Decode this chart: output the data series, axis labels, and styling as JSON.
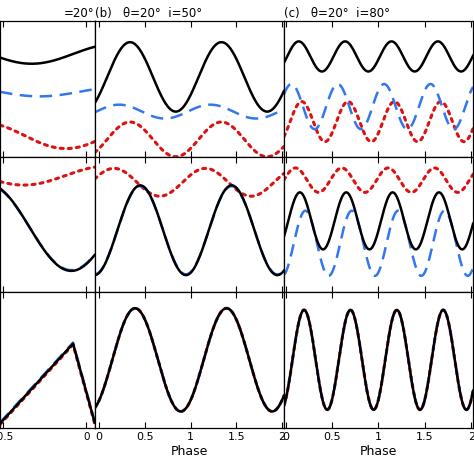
{
  "title_b": "(b)   θ=20°  i=50°",
  "title_c": "(c)   θ=20°  i=80°",
  "title_a_partial": "=20°",
  "xlabel": "Phase",
  "c_black": "black",
  "c_blue": "#3377ee",
  "c_red": "#dd1111",
  "lw_black": 1.8,
  "lw_blue": 1.8,
  "lw_red": 1.8,
  "dotsize": 2.5
}
